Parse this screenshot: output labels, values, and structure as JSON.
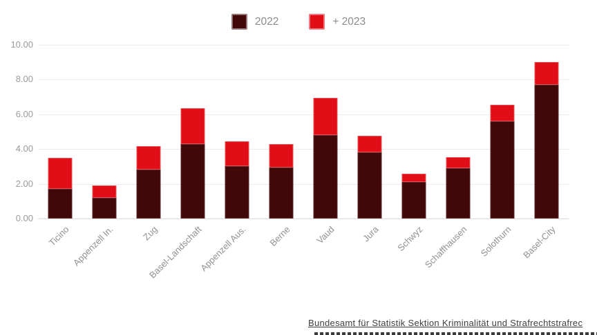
{
  "chart_data": {
    "type": "bar",
    "stacked": true,
    "title": "",
    "categories": [
      "Ticino",
      "Appenzell In.",
      "Zug",
      "Basel-Landschaft",
      "Appenzell Aus.",
      "Berne",
      "Vaud",
      "Jura",
      "Schwyz",
      "Schaffhausen",
      "Solothurn",
      "Basel-City"
    ],
    "series": [
      {
        "name": "2022",
        "color": "#420708",
        "values": [
          1.7,
          1.2,
          2.8,
          4.3,
          3.0,
          2.95,
          4.8,
          3.8,
          2.1,
          2.9,
          5.6,
          7.7
        ]
      },
      {
        "name": "+ 2023",
        "color": "#e10e17",
        "values": [
          1.8,
          0.7,
          1.35,
          2.05,
          1.45,
          1.35,
          2.15,
          0.95,
          0.5,
          0.65,
          0.95,
          1.3
        ]
      }
    ],
    "stack_totals": [
      3.5,
      1.9,
      4.15,
      6.35,
      4.45,
      4.3,
      6.95,
      4.75,
      2.6,
      3.55,
      6.55,
      9.0
    ],
    "xlabel": "",
    "ylabel": "",
    "ylim": [
      0,
      10
    ],
    "yticks": [
      "10.00",
      "8.00",
      "6.00",
      "4.00",
      "2.00",
      "0.00"
    ],
    "grid": true,
    "legend_position": "top",
    "x_tick_rotation": -45
  },
  "footer": {
    "source_text": "Bundesamt für Statistik Sektion Kriminalität und Strafrechtstrafrec"
  }
}
